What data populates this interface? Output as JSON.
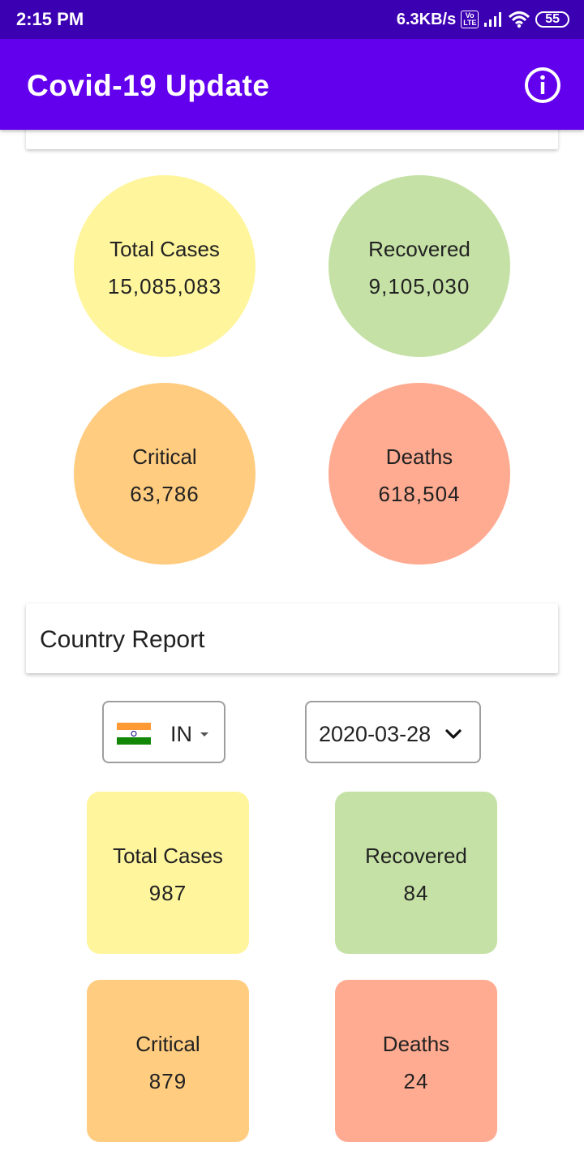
{
  "status_bar": {
    "time": "2:15 PM",
    "network_speed": "6.3KB/s",
    "volte_top": "Vo",
    "volte_bottom": "LTE",
    "battery": "55"
  },
  "app_bar": {
    "title": "Covid-19 Update",
    "info_icon": "info-icon"
  },
  "global_stats": [
    {
      "label": "Total Cases",
      "value": "15,085,083",
      "color": "#fff59d"
    },
    {
      "label": "Recovered",
      "value": "9,105,030",
      "color": "#c5e1a5"
    },
    {
      "label": "Critical",
      "value": "63,786",
      "color": "#ffcc80"
    },
    {
      "label": "Deaths",
      "value": "618,504",
      "color": "#ffab91"
    }
  ],
  "country_report": {
    "title": "Country Report",
    "country_code": "IN",
    "date": "2020-03-28",
    "stats": [
      {
        "label": "Total Cases",
        "value": "987",
        "color": "#fff59d"
      },
      {
        "label": "Recovered",
        "value": "84",
        "color": "#c5e1a5"
      },
      {
        "label": "Critical",
        "value": "879",
        "color": "#ffcc80"
      },
      {
        "label": "Deaths",
        "value": "24",
        "color": "#ffab91"
      }
    ]
  }
}
